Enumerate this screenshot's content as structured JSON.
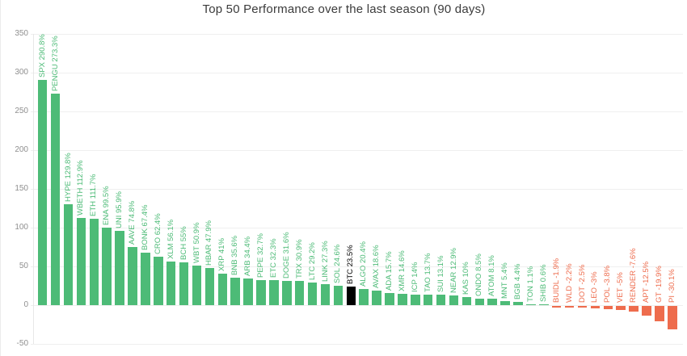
{
  "chart_data": {
    "type": "bar",
    "title": "Top 50 Performance over the last season (90 days)",
    "xlabel": "",
    "ylabel": "",
    "ylim": [
      -50,
      350
    ],
    "yticks": [
      350,
      300,
      250,
      200,
      150,
      100,
      50,
      0,
      -50
    ],
    "grid": true,
    "legend": false,
    "highlight_symbol": "BTC",
    "colors": {
      "positive": "#4dbb77",
      "negative": "#ee6c4d",
      "highlight": "#000000",
      "axis_text": "#8f8f8f",
      "grid_line": "#efefef",
      "title_text": "#3b3b3b"
    },
    "bars": [
      {
        "symbol": "SPX",
        "value": 290.8,
        "label": "SPX 290.8%"
      },
      {
        "symbol": "PENGU",
        "value": 273.3,
        "label": "PENGU 273.3%"
      },
      {
        "symbol": "HYPE",
        "value": 129.8,
        "label": "HYPE 129.8%"
      },
      {
        "symbol": "WBETH",
        "value": 112.9,
        "label": "WBETH 112.9%"
      },
      {
        "symbol": "ETH",
        "value": 111.7,
        "label": "ETH 111.7%"
      },
      {
        "symbol": "ENA",
        "value": 99.5,
        "label": "ENA 99.5%"
      },
      {
        "symbol": "UNI",
        "value": 95.9,
        "label": "UNI 95.9%"
      },
      {
        "symbol": "AAVE",
        "value": 74.8,
        "label": "AAVE 74.8%"
      },
      {
        "symbol": "BONK",
        "value": 67.4,
        "label": "BONK 67.4%"
      },
      {
        "symbol": "CRO",
        "value": 62.4,
        "label": "CRO 62.4%"
      },
      {
        "symbol": "XLM",
        "value": 56.1,
        "label": "XLM 56.1%"
      },
      {
        "symbol": "BCH",
        "value": 55,
        "label": "BCH 55%"
      },
      {
        "symbol": "WBT",
        "value": 50.9,
        "label": "WBT 50.9%"
      },
      {
        "symbol": "HBAR",
        "value": 47.9,
        "label": "HBAR 47.9%"
      },
      {
        "symbol": "XRP",
        "value": 41,
        "label": "XRP 41%"
      },
      {
        "symbol": "BNB",
        "value": 35.6,
        "label": "BNB 35.6%"
      },
      {
        "symbol": "ARB",
        "value": 34.4,
        "label": "ARB 34.4%"
      },
      {
        "symbol": "PEPE",
        "value": 32.7,
        "label": "PEPE 32.7%"
      },
      {
        "symbol": "ETC",
        "value": 32.3,
        "label": "ETC 32.3%"
      },
      {
        "symbol": "DOGE",
        "value": 31.6,
        "label": "DOGE 31.6%"
      },
      {
        "symbol": "TRX",
        "value": 30.9,
        "label": "TRX 30.9%"
      },
      {
        "symbol": "LTC",
        "value": 29.2,
        "label": "LTC 29.2%"
      },
      {
        "symbol": "LINK",
        "value": 27.3,
        "label": "LINK 27.3%"
      },
      {
        "symbol": "SOL",
        "value": 24.6,
        "label": "SOL 24.6%"
      },
      {
        "symbol": "BTC",
        "value": 23.5,
        "label": "BTC 23.5%"
      },
      {
        "symbol": "ALGO",
        "value": 20.4,
        "label": "ALGO 20.4%"
      },
      {
        "symbol": "AVAX",
        "value": 18.6,
        "label": "AVAX 18.6%"
      },
      {
        "symbol": "ADA",
        "value": 15.7,
        "label": "ADA 15.7%"
      },
      {
        "symbol": "XMR",
        "value": 14.6,
        "label": "XMR 14.6%"
      },
      {
        "symbol": "ICP",
        "value": 14,
        "label": "ICP 14%"
      },
      {
        "symbol": "TAO",
        "value": 13.7,
        "label": "TAO 13.7%"
      },
      {
        "symbol": "SUI",
        "value": 13.1,
        "label": "SUI 13.1%"
      },
      {
        "symbol": "NEAR",
        "value": 12.9,
        "label": "NEAR 12.9%"
      },
      {
        "symbol": "KAS",
        "value": 10,
        "label": "KAS 10%"
      },
      {
        "symbol": "ONDO",
        "value": 8.5,
        "label": "ONDO 8.5%"
      },
      {
        "symbol": "ATOM",
        "value": 8.1,
        "label": "ATOM 8.1%"
      },
      {
        "symbol": "MNT",
        "value": 5.4,
        "label": "MNT 5.4%"
      },
      {
        "symbol": "BGB",
        "value": 4.4,
        "label": "BGB 4.4%"
      },
      {
        "symbol": "TON",
        "value": 1.1,
        "label": "TON 1.1%"
      },
      {
        "symbol": "SHIB",
        "value": 0.6,
        "label": "SHIB 0.6%"
      },
      {
        "symbol": "BUIDL",
        "value": -1.9,
        "label": "BUIDL -1.9%"
      },
      {
        "symbol": "WLD",
        "value": -2.2,
        "label": "WLD -2.2%"
      },
      {
        "symbol": "DOT",
        "value": -2.5,
        "label": "DOT -2.5%"
      },
      {
        "symbol": "LEO",
        "value": -3,
        "label": "LEO -3%"
      },
      {
        "symbol": "POL",
        "value": -3.8,
        "label": "POL -3.8%"
      },
      {
        "symbol": "VET",
        "value": -5,
        "label": "VET -5%"
      },
      {
        "symbol": "RENDER",
        "value": -7.6,
        "label": "RENDER -7.6%"
      },
      {
        "symbol": "APT",
        "value": -12.5,
        "label": "APT -12.5%"
      },
      {
        "symbol": "GT",
        "value": -19.9,
        "label": "GT -19.9%"
      },
      {
        "symbol": "PI",
        "value": -30.1,
        "label": "PI -30.1%"
      }
    ]
  }
}
